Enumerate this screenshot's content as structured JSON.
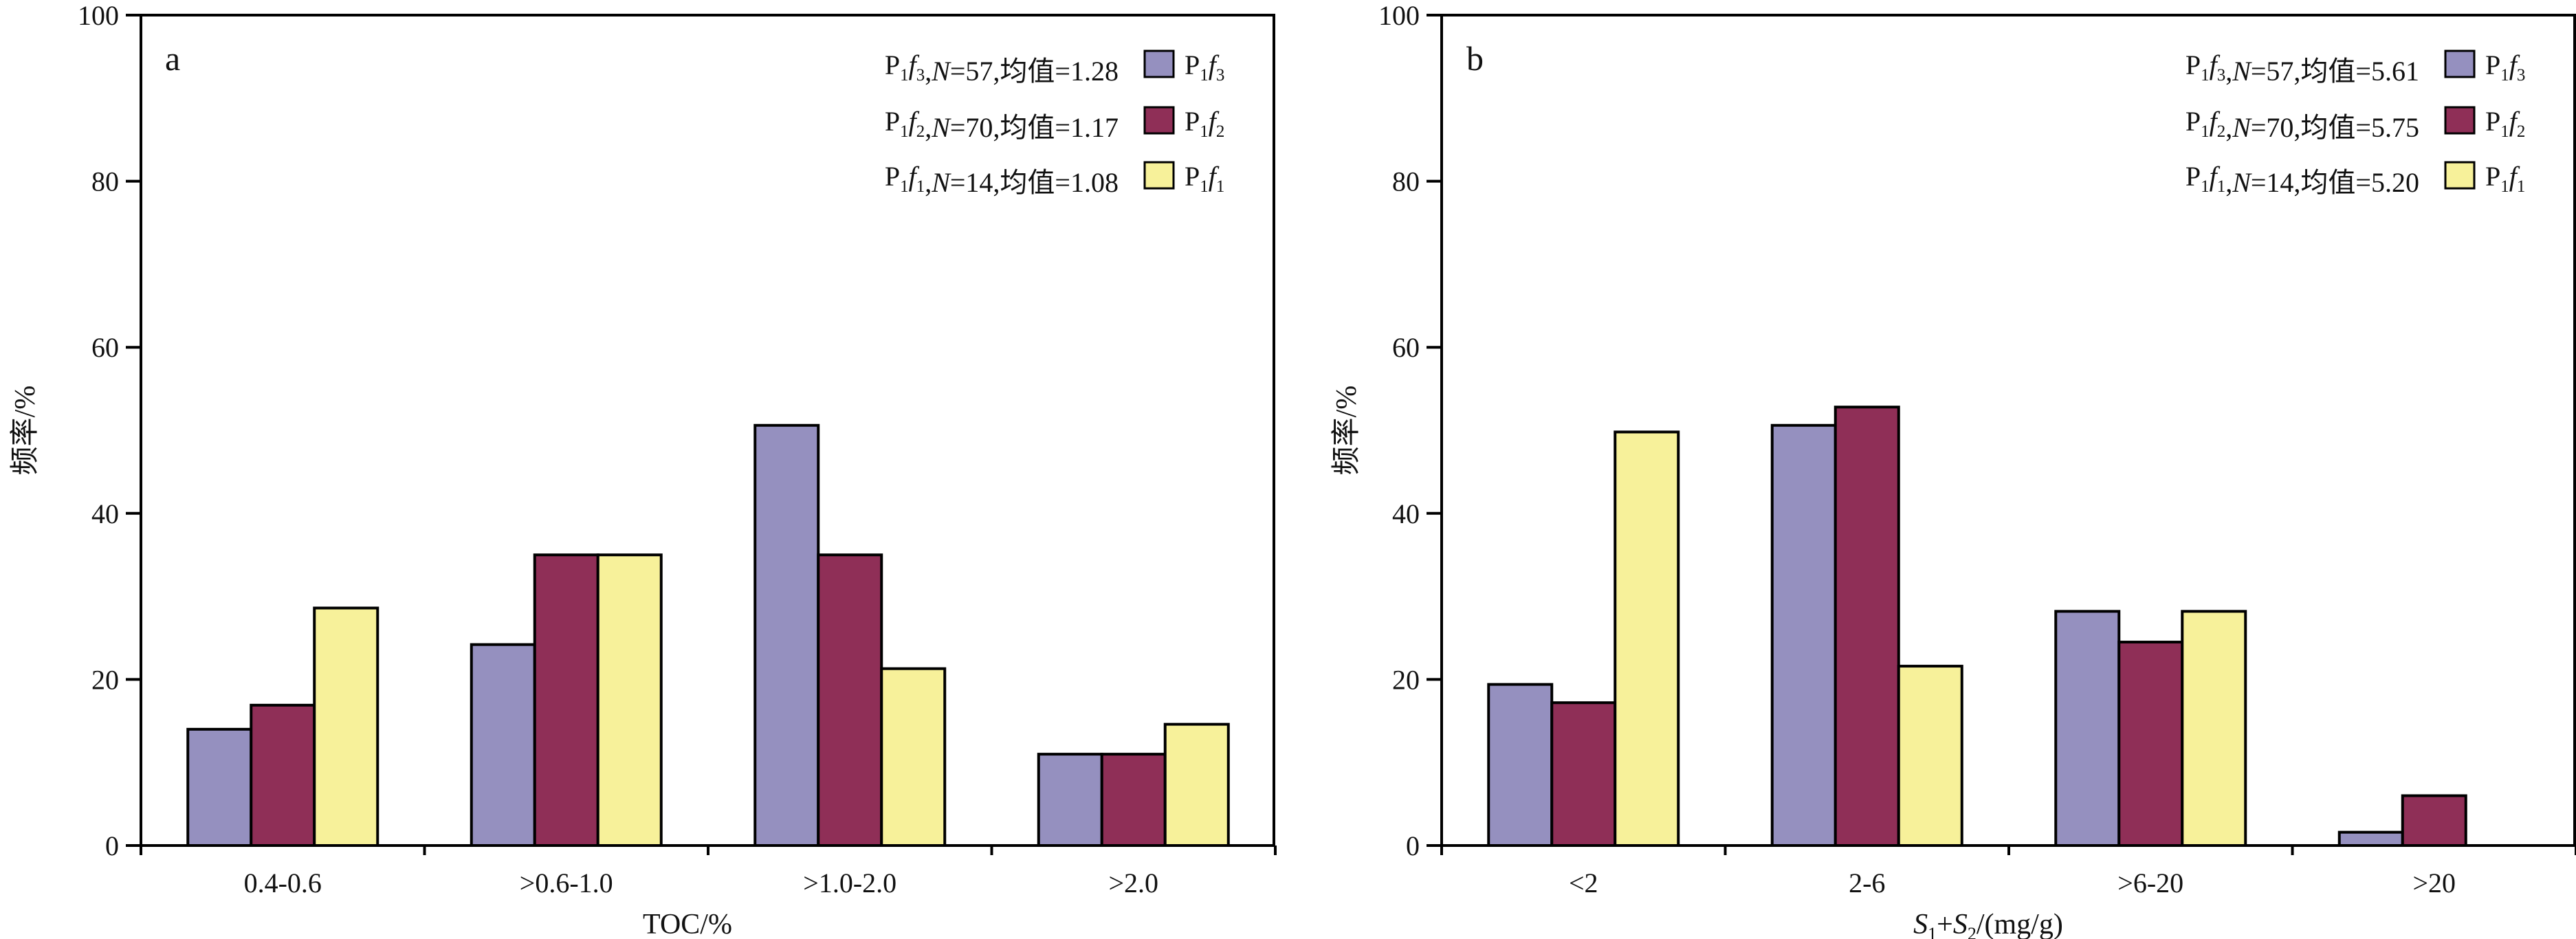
{
  "chart_data": [
    {
      "type": "bar",
      "panel": "a",
      "categories": [
        "0.4-0.6",
        ">0.6-1.0",
        ">1.0-2.0",
        ">2.0"
      ],
      "xlabel": "TOC/%",
      "ylabel": "频率/%",
      "ylim": [
        0,
        100
      ],
      "yticks": [
        "0",
        "20",
        "40",
        "60",
        "80",
        "100"
      ],
      "legend_position": "top-right",
      "series": [
        {
          "name": "P1f3",
          "base": "P",
          "sub1": "1",
          "ital": "f",
          "sub2": "3",
          "n": "57",
          "mean": "1.28",
          "color": "#9590bf",
          "values": [
            14.0,
            24.2,
            50.6,
            11.0
          ]
        },
        {
          "name": "P1f2",
          "base": "P",
          "sub1": "1",
          "ital": "f",
          "sub2": "2",
          "n": "70",
          "mean": "1.17",
          "color": "#8f2f57",
          "values": [
            16.9,
            35.0,
            35.0,
            11.0
          ]
        },
        {
          "name": "P1f1",
          "base": "P",
          "sub1": "1",
          "ital": "f",
          "sub2": "1",
          "n": "14",
          "mean": "1.08",
          "color": "#f7f19a",
          "values": [
            28.6,
            35.0,
            21.3,
            14.6
          ]
        }
      ]
    },
    {
      "type": "bar",
      "panel": "b",
      "categories": [
        "<2",
        "2-6",
        ">6-20",
        ">20"
      ],
      "xlabel": "S1+S2/(mg/g)",
      "ylabel": "频率/%",
      "ylim": [
        0,
        100
      ],
      "yticks": [
        "0",
        "20",
        "40",
        "60",
        "80",
        "100"
      ],
      "legend_position": "top-right",
      "series": [
        {
          "name": "P1f3",
          "base": "P",
          "sub1": "1",
          "ital": "f",
          "sub2": "3",
          "n": "57",
          "mean": "5.61",
          "color": "#9590bf",
          "values": [
            19.4,
            50.6,
            28.2,
            1.6
          ]
        },
        {
          "name": "P1f2",
          "base": "P",
          "sub1": "1",
          "ital": "f",
          "sub2": "2",
          "n": "70",
          "mean": "5.75",
          "color": "#8f2f57",
          "values": [
            17.2,
            52.8,
            24.5,
            6.0
          ]
        },
        {
          "name": "P1f1",
          "base": "P",
          "sub1": "1",
          "ital": "f",
          "sub2": "1",
          "n": "14",
          "mean": "5.20",
          "color": "#f7f19a",
          "values": [
            49.8,
            21.6,
            28.2,
            0
          ]
        }
      ]
    }
  ],
  "text": {
    "n_label": "N",
    "mean_label": "均值"
  }
}
